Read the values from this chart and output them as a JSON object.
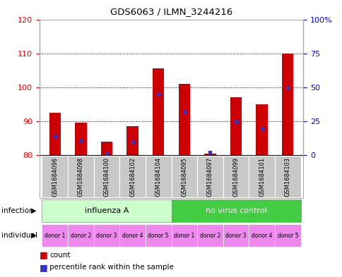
{
  "title": "GDS6063 / ILMN_3244216",
  "samples": [
    "GSM1684096",
    "GSM1684098",
    "GSM1684100",
    "GSM1684102",
    "GSM1684104",
    "GSM1684095",
    "GSM1684097",
    "GSM1684099",
    "GSM1684101",
    "GSM1684103"
  ],
  "count_values": [
    92.5,
    89.5,
    84.0,
    88.5,
    105.5,
    101.0,
    80.5,
    97.0,
    95.0,
    110.0
  ],
  "percentile_values": [
    14,
    11,
    1,
    10,
    45,
    32,
    2,
    25,
    20,
    50
  ],
  "ymin": 80,
  "ymax": 120,
  "yticks_left": [
    80,
    90,
    100,
    110,
    120
  ],
  "yticks_right": [
    0,
    25,
    50,
    75,
    100
  ],
  "bar_color": "#cc0000",
  "percentile_color": "#3333cc",
  "infection_group1_label": "influenza A",
  "infection_group1_color": "#ccffcc",
  "infection_group2_label": "no virus control",
  "infection_group2_color": "#44cc44",
  "individual_color": "#ee88ee",
  "individual_labels": [
    "donor 1",
    "donor 2",
    "donor 3",
    "donor 4",
    "donor 5",
    "donor 1",
    "donor 2",
    "donor 3",
    "donor 4",
    "donor 5"
  ],
  "infection_label": "infection",
  "individual_label": "individual",
  "legend_count_label": "count",
  "legend_percentile_label": "percentile rank within the sample",
  "sample_box_color": "#c8c8c8",
  "outer_border_color": "#aaaaaa"
}
